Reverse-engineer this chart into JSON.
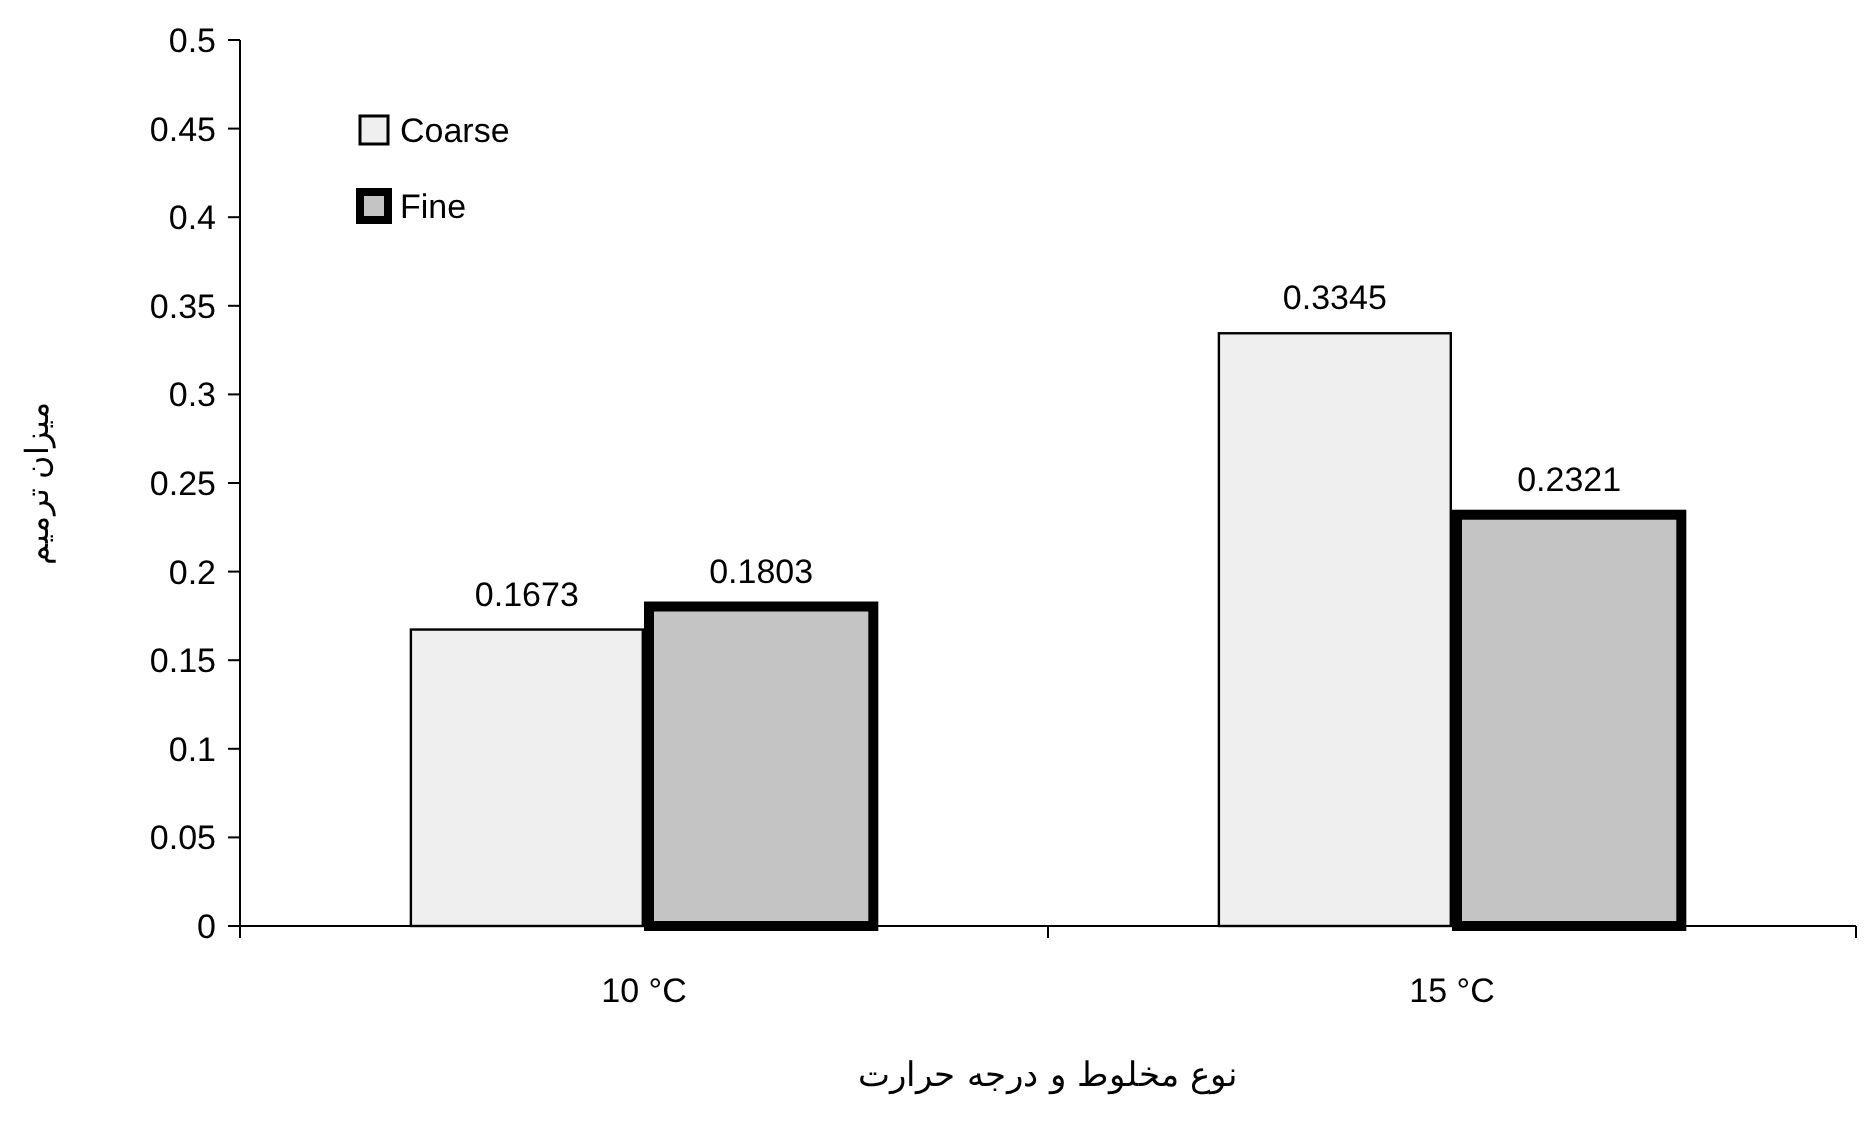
{
  "chart_data": {
    "type": "bar",
    "xlabel": "نوع مخلوط و درجه حرارت",
    "ylabel": "میزان ترمیم",
    "categories": [
      "10 °C",
      "15 °C"
    ],
    "series": [
      {
        "name": "Coarse",
        "color": "#efefef",
        "values": [
          0.1673,
          0.3345
        ]
      },
      {
        "name": "Fine",
        "color": "#c4c4c4",
        "values": [
          0.1803,
          0.2321
        ]
      }
    ],
    "ylim": [
      0,
      0.5
    ],
    "yticks": [
      0,
      0.05,
      0.1,
      0.15,
      0.2,
      0.25,
      0.3,
      0.35,
      0.4,
      0.45,
      0.5
    ],
    "data_labels": true,
    "legend": "top left",
    "grid": false
  }
}
